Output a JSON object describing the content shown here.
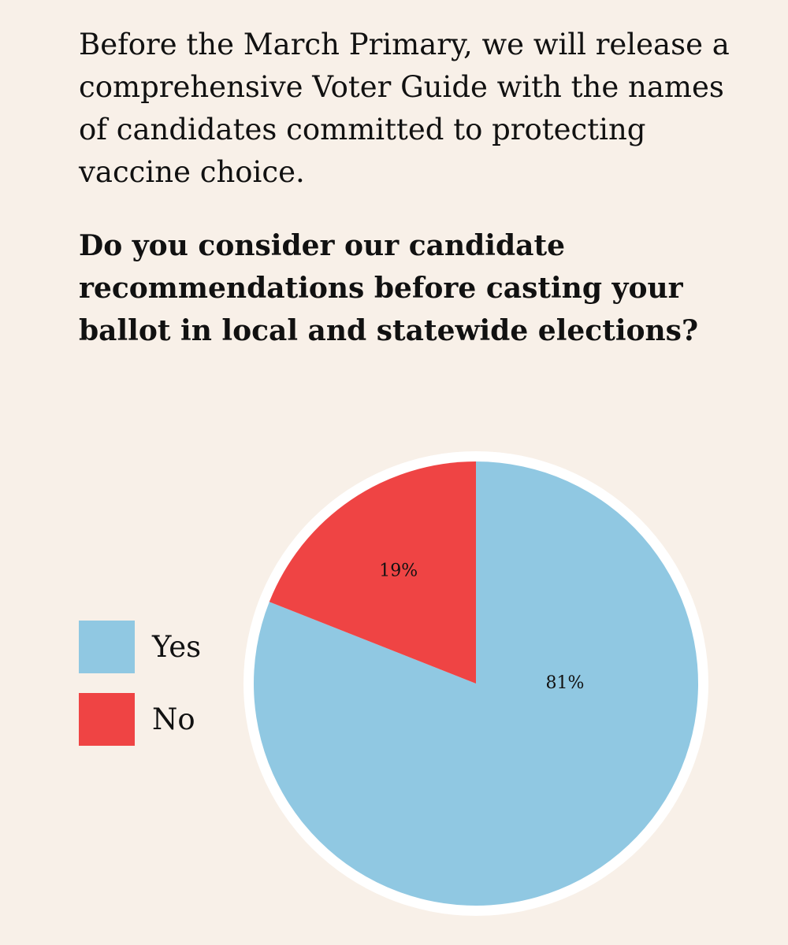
{
  "intro_text": "Before the March Primary, we will release a comprehensive Voter Guide with the names of candidates committed to protecting vaccine choice.",
  "question_text": "Do you consider our candidate recommendations before casting your ballot in local and statewide elections?",
  "chart_data": {
    "type": "pie",
    "slices": [
      {
        "label": "Yes",
        "value": 81,
        "display": "81%",
        "color": "#90c8e2"
      },
      {
        "label": "No",
        "value": 19,
        "display": "19%",
        "color": "#ef4444"
      }
    ],
    "start": "12 o'clock",
    "direction": "clockwise",
    "legend_position": "left"
  }
}
